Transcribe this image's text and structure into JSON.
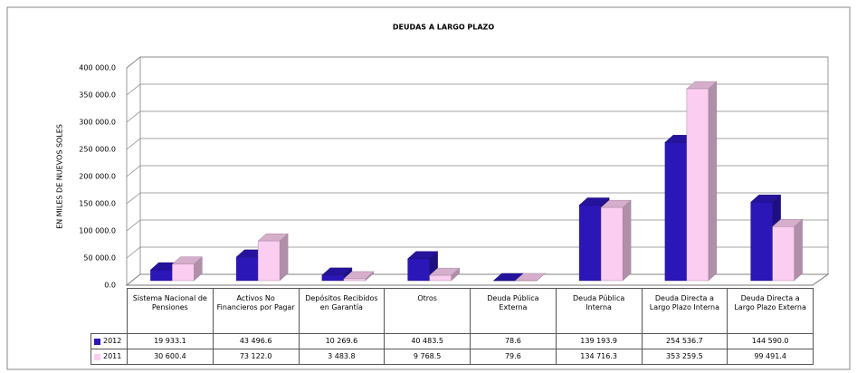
{
  "chart_data": {
    "type": "bar3d",
    "title": "DEUDAS A LARGO  PLAZO",
    "y_label": "EN MILES DE NUEVOS SOLES",
    "categories": [
      "Sistema Nacional de Pensiones",
      "Activos No Financieros por Pagar",
      "Depósitos Recibidos en Garantía",
      "Otros",
      "Deuda Pública Externa",
      "Deuda Pública Interna",
      "Deuda Directa a Largo Plazo Interna",
      "Deuda Directa a Largo Plazo Externa"
    ],
    "series": [
      {
        "name": "2012",
        "color": "#2b16b8",
        "values": [
          19933.1,
          43496.6,
          10269.6,
          40483.5,
          78.6,
          139193.9,
          254536.7,
          144590.0
        ],
        "value_labels": [
          "19 933.1",
          "43 496.6",
          "10 269.6",
          "40 483.5",
          "78.6",
          "139 193.9",
          "254 536.7",
          "144 590.0"
        ]
      },
      {
        "name": "2011",
        "color": "#fbcdf0",
        "values": [
          30600.4,
          73122.0,
          3483.8,
          9768.5,
          79.6,
          134716.3,
          353259.5,
          99491.4
        ],
        "value_labels": [
          "30 600.4",
          "73 122.0",
          "3 483.8",
          "9 768.5",
          "79.6",
          "134 716.3",
          "353 259.5",
          "99 491.4"
        ]
      }
    ],
    "ylim": [
      0,
      400000
    ],
    "yticks": [
      {
        "value": 0,
        "label": "0.0"
      },
      {
        "value": 50000,
        "label": "50 000.0"
      },
      {
        "value": 100000,
        "label": "100 000.0"
      },
      {
        "value": 150000,
        "label": "150 000.0"
      },
      {
        "value": 200000,
        "label": "200 000.0"
      },
      {
        "value": 250000,
        "label": "250 000.0"
      },
      {
        "value": 300000,
        "label": "300 000.0"
      },
      {
        "value": 350000,
        "label": "350 000.0"
      },
      {
        "value": 400000,
        "label": "400 000.0"
      }
    ],
    "grid": true
  }
}
